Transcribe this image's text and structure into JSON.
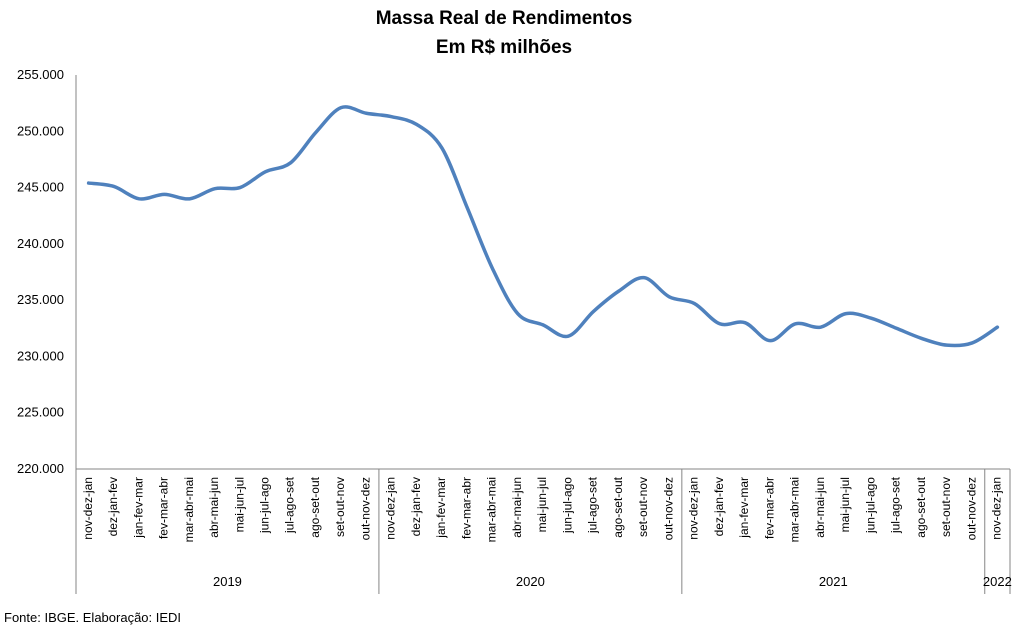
{
  "chart_data": {
    "type": "line",
    "title": "Massa Real de Rendimentos",
    "subtitle": "Em R$ milhões",
    "ylim": [
      220000,
      255000
    ],
    "y_ticks": [
      "220.000",
      "225.000",
      "230.000",
      "235.000",
      "240.000",
      "245.000",
      "250.000",
      "255.000"
    ],
    "x": [
      "nov-dez-jan",
      "dez-jan-fev",
      "jan-fev-mar",
      "fev-mar-abr",
      "mar-abr-mai",
      "abr-mai-jun",
      "mai-jun-jul",
      "jun-jul-ago",
      "jul-ago-set",
      "ago-set-out",
      "set-out-nov",
      "out-nov-dez",
      "nov-dez-jan",
      "dez-jan-fev",
      "jan-fev-mar",
      "fev-mar-abr",
      "mar-abr-mai",
      "abr-mai-jun",
      "mai-jun-jul",
      "jun-jul-ago",
      "jul-ago-set",
      "ago-set-out",
      "set-out-nov",
      "out-nov-dez",
      "nov-dez-jan",
      "dez-jan-fev",
      "jan-fev-mar",
      "fev-mar-abr",
      "mar-abr-mai",
      "abr-mai-jun",
      "mai-jun-jul",
      "jun-jul-ago",
      "jul-ago-set",
      "ago-set-out",
      "set-out-nov",
      "out-nov-dez",
      "nov-dez-jan"
    ],
    "year_groups": [
      {
        "label": "2019",
        "count": 12
      },
      {
        "label": "2020",
        "count": 12
      },
      {
        "label": "2021",
        "count": 12
      },
      {
        "label": "2022",
        "count": 1
      }
    ],
    "series": [
      {
        "color": "#4f81bd",
        "values": [
          245400,
          245100,
          244000,
          244400,
          244000,
          244900,
          245000,
          246400,
          247200,
          249900,
          252100,
          251600,
          251300,
          250600,
          248500,
          243200,
          237800,
          233800,
          232800,
          231800,
          234000,
          235800,
          237000,
          235300,
          234700,
          232900,
          233000,
          231400,
          232900,
          232600,
          233800,
          233400,
          232500,
          231600,
          231000,
          231200,
          232600
        ]
      }
    ],
    "grid": false,
    "legend": "none"
  },
  "source": "Fonte: IBGE. Elaboração: IEDI"
}
